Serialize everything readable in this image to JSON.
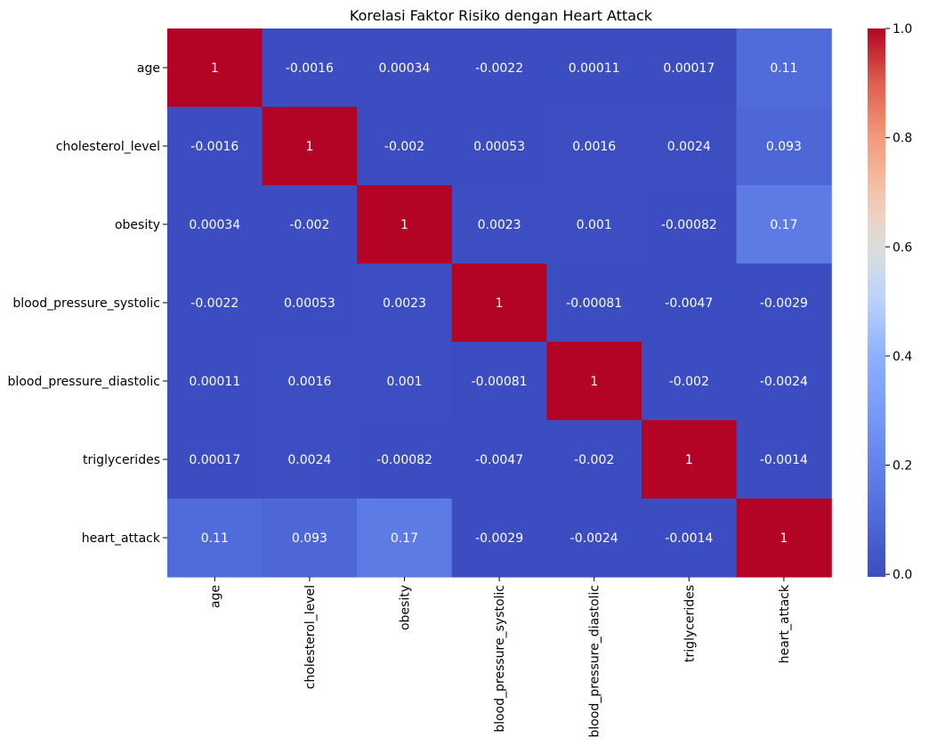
{
  "chart_data": {
    "type": "heatmap",
    "title": "Korelasi Faktor Risiko dengan Heart Attack",
    "xlabel": "",
    "ylabel": "",
    "labels": [
      "age",
      "cholesterol_level",
      "obesity",
      "blood_pressure_systolic",
      "blood_pressure_diastolic",
      "triglycerides",
      "heart_attack"
    ],
    "values": [
      [
        1,
        -0.0016,
        0.00034,
        -0.0022,
        0.00011,
        0.00017,
        0.11
      ],
      [
        -0.0016,
        1,
        -0.002,
        0.00053,
        0.0016,
        0.0024,
        0.093
      ],
      [
        0.00034,
        -0.002,
        1,
        0.0023,
        0.001,
        -0.00082,
        0.17
      ],
      [
        -0.0022,
        0.00053,
        0.0023,
        1,
        -0.00081,
        -0.0047,
        -0.0029
      ],
      [
        0.00011,
        0.0016,
        0.001,
        -0.00081,
        1,
        -0.002,
        -0.0024
      ],
      [
        0.00017,
        0.0024,
        -0.00082,
        -0.0047,
        -0.002,
        1,
        -0.0014
      ],
      [
        0.11,
        0.093,
        0.17,
        -0.0029,
        -0.0024,
        -0.0014,
        1
      ]
    ],
    "annotations": [
      [
        "1",
        "-0.0016",
        "0.00034",
        "-0.0022",
        "0.00011",
        "0.00017",
        "0.11"
      ],
      [
        "-0.0016",
        "1",
        "-0.002",
        "0.00053",
        "0.0016",
        "0.0024",
        "0.093"
      ],
      [
        "0.00034",
        "-0.002",
        "1",
        "0.0023",
        "0.001",
        "-0.00082",
        "0.17"
      ],
      [
        "-0.0022",
        "0.00053",
        "0.0023",
        "1",
        "-0.00081",
        "-0.0047",
        "-0.0029"
      ],
      [
        "0.00011",
        "0.0016",
        "0.001",
        "-0.00081",
        "1",
        "-0.002",
        "-0.0024"
      ],
      [
        "0.00017",
        "0.0024",
        "-0.00082",
        "-0.0047",
        "-0.002",
        "1",
        "-0.0014"
      ],
      [
        "0.11",
        "0.093",
        "0.17",
        "-0.0029",
        "-0.0024",
        "-0.0014",
        "1"
      ]
    ],
    "colormap": "coolwarm",
    "colorbar": {
      "range": [
        -0.0047,
        1.0
      ],
      "ticks": [
        0.0,
        0.2,
        0.4,
        0.6,
        0.8,
        1.0
      ],
      "tick_labels": [
        "0.0",
        "0.2",
        "0.4",
        "0.6",
        "0.8",
        "1.0"
      ]
    },
    "grid": false,
    "legend": "colorbar-right"
  }
}
